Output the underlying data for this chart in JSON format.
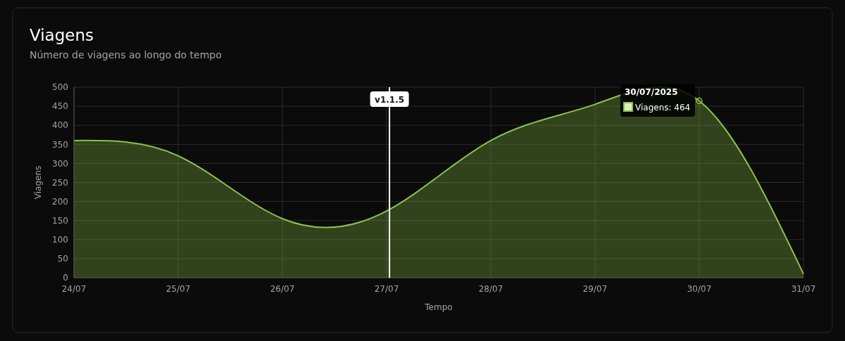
{
  "chart_data": {
    "type": "area",
    "title": "Viagens",
    "subtitle": "Número de viagens ao longo do tempo",
    "xlabel": "Tempo",
    "ylabel": "Viagens",
    "x": [
      "2025-07-24",
      "2025-07-25",
      "2025-07-26",
      "2025-07-27",
      "2025-07-28",
      "2025-07-29",
      "2025-07-30",
      "2025-07-31"
    ],
    "series": [
      {
        "color": "#8bc34a",
        "values": [
          360,
          320,
          155,
          175,
          360,
          455,
          464,
          10
        ]
      }
    ],
    "xlim": [
      "2025-07-24",
      "2025-07-31"
    ],
    "xticks": [
      {
        "value": "2025-07-24",
        "label": "24/07"
      },
      {
        "value": "2025-07-25",
        "label": "25/07"
      },
      {
        "value": "2025-07-26",
        "label": "26/07"
      },
      {
        "value": "2025-07-27",
        "label": "27/07"
      },
      {
        "value": "2025-07-28",
        "label": "28/07"
      },
      {
        "value": "2025-07-29",
        "label": "29/07"
      },
      {
        "value": "2025-07-30",
        "label": "30/07"
      },
      {
        "value": "2025-07-31",
        "label": "31/07"
      }
    ],
    "ylim": [
      0,
      500
    ],
    "yticks": [
      0,
      50,
      100,
      150,
      200,
      250,
      300,
      350,
      400,
      450,
      500
    ],
    "grid": true,
    "ref_lines": [
      {
        "axis": "x",
        "value": "2025-07-27T00:40",
        "label": "v1.1.5",
        "color": "#ffffff"
      }
    ],
    "annotations": [
      {
        "text": "30/07/2025",
        "x": "2025-07-30",
        "y": 464
      },
      "Viagens: 464"
    ]
  }
}
